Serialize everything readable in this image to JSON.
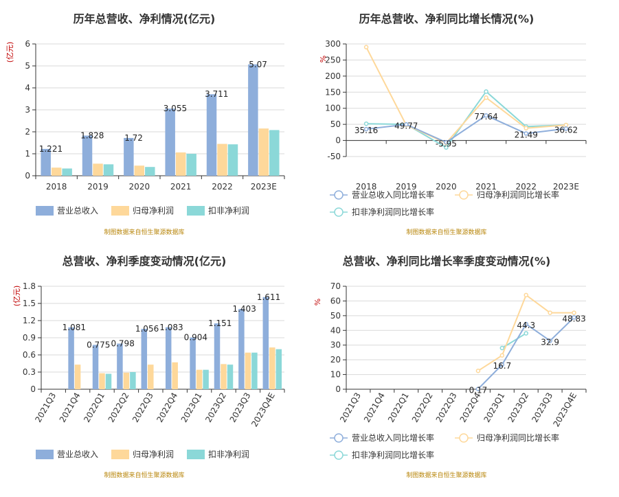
{
  "chart_data": [
    {
      "type": "bar",
      "title": "历年总营收、净利情况(亿元)",
      "unit": "(亿元)",
      "categories": [
        "2018",
        "2019",
        "2020",
        "2021",
        "2022",
        "2023E"
      ],
      "ylim": [
        0,
        6
      ],
      "yticks": [
        0,
        1,
        2,
        3,
        4,
        5,
        6
      ],
      "grid": true,
      "legend_placement": "bottom-left",
      "series": [
        {
          "name": "营业总收入",
          "color": "#8eaedb",
          "values": [
            1.221,
            1.828,
            1.72,
            3.055,
            3.711,
            5.07
          ],
          "labels": [
            "1.221",
            "1.828",
            "1.72",
            "3.055",
            "3.711",
            "5.07"
          ]
        },
        {
          "name": "归母净利润",
          "color": "#fed89a",
          "values": [
            0.37,
            0.55,
            0.46,
            1.06,
            1.45,
            2.15
          ],
          "labels": []
        },
        {
          "name": "扣非净利润",
          "color": "#8bd8d8",
          "values": [
            0.33,
            0.52,
            0.4,
            1.0,
            1.43,
            2.08
          ],
          "labels": []
        }
      ],
      "source": "制图数据来自恒生聚源数据库"
    },
    {
      "type": "line",
      "title": "历年总营收、净利同比增长情况(%)",
      "unit": "%",
      "categories": [
        "2018",
        "2019",
        "2020",
        "2021",
        "2022",
        "2023E"
      ],
      "ylim": [
        -50,
        300
      ],
      "yticks": [
        -50,
        0,
        50,
        100,
        150,
        200,
        250,
        300
      ],
      "grid": true,
      "legend_placement": "bottom",
      "series": [
        {
          "name": "营业总收入同比增长率",
          "color": "#8eaedb",
          "values": [
            35.16,
            49.77,
            -5.95,
            77.64,
            21.49,
            36.62
          ],
          "labels": [
            "35.16",
            "49.77",
            "-5.95",
            "77.64",
            "21.49",
            "36.62"
          ]
        },
        {
          "name": "归母净利润同比增长率",
          "color": "#fed89a",
          "values": [
            290,
            48,
            -8,
            133,
            38,
            48
          ],
          "labels": []
        },
        {
          "name": "扣非净利润同比增长率",
          "color": "#8bd8d8",
          "values": [
            52,
            50,
            -22,
            152,
            43,
            48
          ],
          "labels": []
        }
      ],
      "source": "制图数据来自恒生聚源数据库"
    },
    {
      "type": "bar",
      "title": "总营收、净利季度变动情况(亿元)",
      "unit": "(亿元)",
      "categories": [
        "2021Q3",
        "2021Q4",
        "2022Q1",
        "2022Q2",
        "2022Q3",
        "2022Q4",
        "2023Q1",
        "2023Q2",
        "2023Q3",
        "2023Q4E"
      ],
      "ylim": [
        0,
        1.8
      ],
      "yticks": [
        "0",
        "0.3",
        "0.6",
        "0.9",
        "1.2",
        "1.5",
        "1.8"
      ],
      "grid": true,
      "legend_placement": "bottom-left",
      "series": [
        {
          "name": "营业总收入",
          "color": "#8eaedb",
          "values": [
            null,
            1.081,
            0.775,
            0.798,
            1.056,
            1.083,
            0.904,
            1.151,
            1.403,
            1.611
          ],
          "labels": [
            "",
            "1.081",
            "0.775",
            "0.798",
            "1.056",
            "1.083",
            "0.904",
            "1.151",
            "1.403",
            "1.611"
          ]
        },
        {
          "name": "归母净利润",
          "color": "#fed89a",
          "values": [
            null,
            0.43,
            0.28,
            0.29,
            0.43,
            0.47,
            0.34,
            0.44,
            0.64,
            0.73
          ],
          "labels": []
        },
        {
          "name": "扣非净利润",
          "color": "#8bd8d8",
          "values": [
            null,
            null,
            0.27,
            0.3,
            null,
            null,
            0.34,
            0.43,
            0.64,
            0.7
          ],
          "labels": []
        }
      ],
      "source": "制图数据来自恒生聚源数据库"
    },
    {
      "type": "line",
      "title": "总营收、净利同比增长率季度变动情况(%)",
      "unit": "%",
      "categories": [
        "2021Q3",
        "2021Q4",
        "2022Q1",
        "2022Q2",
        "2022Q3",
        "2022Q4",
        "2023Q1",
        "2023Q2",
        "2023Q3",
        "2023Q4E"
      ],
      "ylim": [
        0,
        70
      ],
      "yticks": [
        0,
        10,
        20,
        30,
        40,
        50,
        60,
        70
      ],
      "grid": true,
      "legend_placement": "bottom",
      "series": [
        {
          "name": "营业总收入同比增长率",
          "color": "#8eaedb",
          "values": [
            null,
            null,
            null,
            null,
            null,
            0.17,
            16.7,
            44.3,
            32.9,
            48.83
          ],
          "labels": [
            "",
            "",
            "",
            "",
            "",
            "0.17",
            "16.7",
            "44.3",
            "32.9",
            "48.83"
          ]
        },
        {
          "name": "归母净利润同比增长率",
          "color": "#fed89a",
          "values": [
            null,
            null,
            null,
            null,
            null,
            12.5,
            23,
            64,
            52,
            52
          ],
          "labels": []
        },
        {
          "name": "扣非净利润同比增长率",
          "color": "#8bd8d8",
          "values": [
            null,
            null,
            null,
            null,
            null,
            null,
            28,
            38,
            null,
            null
          ],
          "labels": []
        }
      ],
      "source": "制图数据来自恒生聚源数据库"
    }
  ]
}
